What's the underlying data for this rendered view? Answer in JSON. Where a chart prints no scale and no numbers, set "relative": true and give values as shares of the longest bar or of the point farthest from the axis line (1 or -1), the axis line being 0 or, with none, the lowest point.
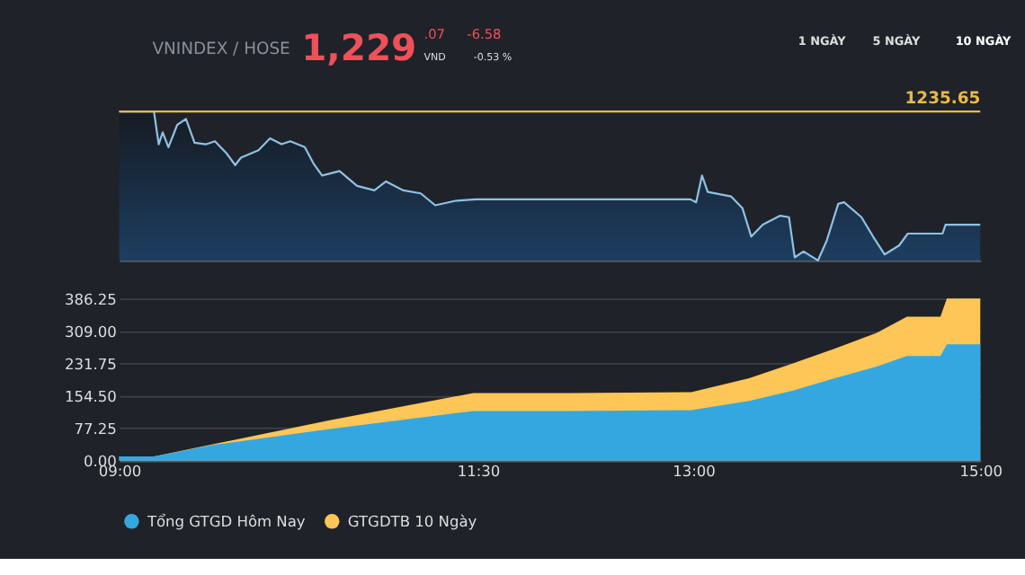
{
  "chart_data": [
    {
      "type": "area",
      "relative": true,
      "annotations": [
        "VNINDEX / HOSE",
        "1,229",
        ".07",
        "VND",
        "-6.58",
        "-0.53 %",
        "1 NGÀY",
        "5 NGÀY",
        "10 NGÀY",
        "1235.65"
      ],
      "xlim": [
        9,
        15
      ],
      "tick_labels": false,
      "grid": false,
      "ref_lines": [
        {
          "axis": "y",
          "value": 1,
          "color": "#e8b94a"
        }
      ],
      "series": [
        {
          "color": "#8fc1e3",
          "x": [
            9.0,
            9.242,
            9.275,
            9.303,
            9.343,
            9.404,
            9.465,
            9.525,
            9.606,
            9.667,
            9.747,
            9.808,
            9.848,
            9.97,
            10.051,
            10.131,
            10.192,
            10.293,
            10.354,
            10.414,
            10.535,
            10.657,
            10.778,
            10.859,
            10.98,
            11.101,
            11.202,
            11.343,
            11.485,
            12.98,
            13.02,
            13.061,
            13.101,
            13.263,
            13.343,
            13.404,
            13.485,
            13.606,
            13.667,
            13.707,
            13.768,
            13.869,
            13.929,
            14.01,
            14.051,
            14.172,
            14.253,
            14.333,
            14.434,
            14.495,
            14.737,
            14.758,
            15.0
          ],
          "values": [
            1.0,
            1.0,
            0.78,
            0.86,
            0.76,
            0.91,
            0.95,
            0.79,
            0.78,
            0.8,
            0.72,
            0.64,
            0.69,
            0.74,
            0.82,
            0.78,
            0.8,
            0.76,
            0.65,
            0.57,
            0.6,
            0.5,
            0.47,
            0.53,
            0.47,
            0.45,
            0.37,
            0.4,
            0.41,
            0.41,
            0.39,
            0.57,
            0.46,
            0.43,
            0.35,
            0.16,
            0.24,
            0.3,
            0.29,
            0.02,
            0.06,
            0.0,
            0.13,
            0.38,
            0.39,
            0.29,
            0.16,
            0.04,
            0.1,
            0.18,
            0.18,
            0.24,
            0.24
          ]
        }
      ]
    },
    {
      "type": "area",
      "xlim": [
        9,
        15
      ],
      "xticks": [
        {
          "value": 9,
          "label": "09:00"
        },
        {
          "value": 11.5,
          "label": "11:30"
        },
        {
          "value": 13,
          "label": "13:00"
        },
        {
          "value": 15,
          "label": "15:00"
        }
      ],
      "ylim": [
        0,
        386.25
      ],
      "yticks": [
        {
          "value": 0,
          "label": "0.00"
        },
        {
          "value": 77.25,
          "label": "77.25"
        },
        {
          "value": 154.5,
          "label": "154.50"
        },
        {
          "value": 231.75,
          "label": "231.75"
        },
        {
          "value": 309,
          "label": "309.00"
        },
        {
          "value": 386.25,
          "label": "386.25"
        }
      ],
      "grid": "y",
      "legend": "bottom",
      "x": [
        9.0,
        9.244,
        9.652,
        10.467,
        11.467,
        12.133,
        12.986,
        13.389,
        13.689,
        13.986,
        14.278,
        14.489,
        14.722,
        14.767,
        15.0
      ],
      "series": [
        {
          "name": "Tổng GTGD Hôm Nay",
          "color": "#35a7e0",
          "values": [
            10,
            10,
            37,
            75,
            118,
            118,
            120,
            142,
            166,
            196,
            224,
            249,
            249,
            277,
            277
          ]
        },
        {
          "name": "GTGDTB 10 Ngày",
          "color": "#fdc656",
          "values": [
            10,
            10,
            39,
            96,
            161,
            161,
            163,
            196,
            231,
            267,
            304,
            343,
            343,
            386,
            386
          ]
        }
      ]
    }
  ]
}
